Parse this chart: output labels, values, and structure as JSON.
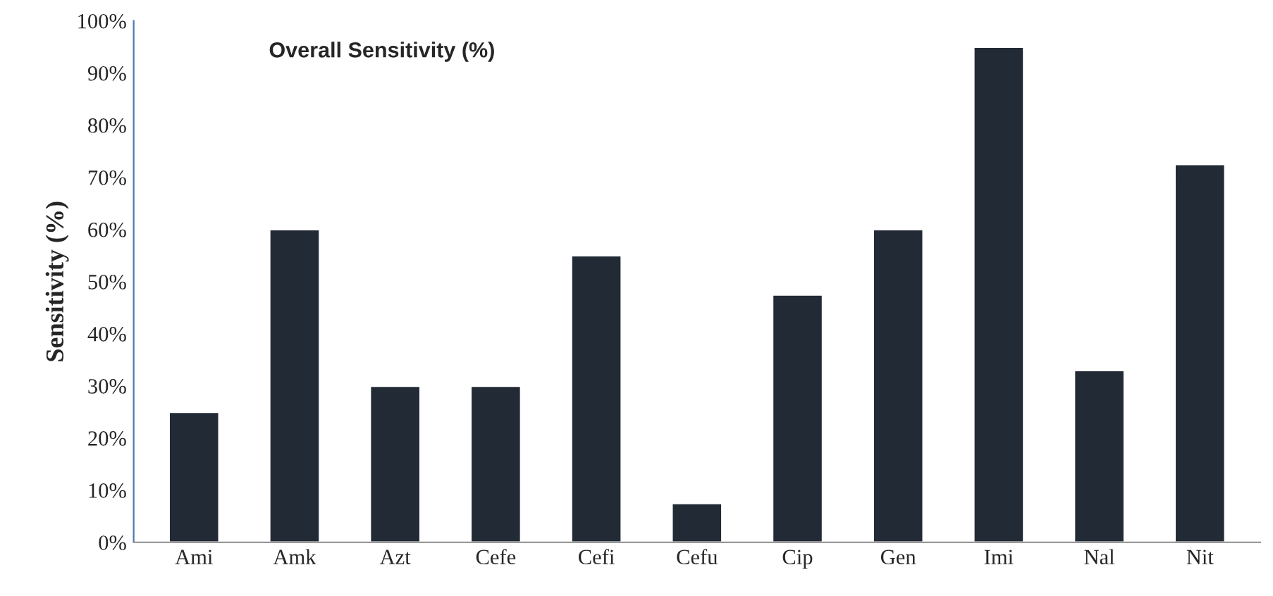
{
  "chart_data": {
    "type": "bar",
    "title": "Overall Sensitivity (%)",
    "ylabel": "Sensitivity (%)",
    "categories": [
      "Ami",
      "Amk",
      "Azt",
      "Cefe",
      "Cefi",
      "Cefu",
      "Cip",
      "Gen",
      "Imi",
      "Nal",
      "Nit"
    ],
    "values": [
      25,
      60,
      30,
      30,
      55,
      7.5,
      47.5,
      60,
      95,
      33,
      72.5
    ],
    "color": "#222a35",
    "ylim": [
      0,
      100
    ],
    "yticks": [
      {
        "value": 0,
        "label": "0%"
      },
      {
        "value": 10,
        "label": "10%"
      },
      {
        "value": 20,
        "label": "20%"
      },
      {
        "value": 30,
        "label": "30%"
      },
      {
        "value": 40,
        "label": "40%"
      },
      {
        "value": 50,
        "label": "50%"
      },
      {
        "value": 60,
        "label": "60%"
      },
      {
        "value": 70,
        "label": "70%"
      },
      {
        "value": 80,
        "label": "80%"
      },
      {
        "value": 90,
        "label": "90%"
      },
      {
        "value": 100,
        "label": "100%"
      }
    ],
    "grid": false
  }
}
